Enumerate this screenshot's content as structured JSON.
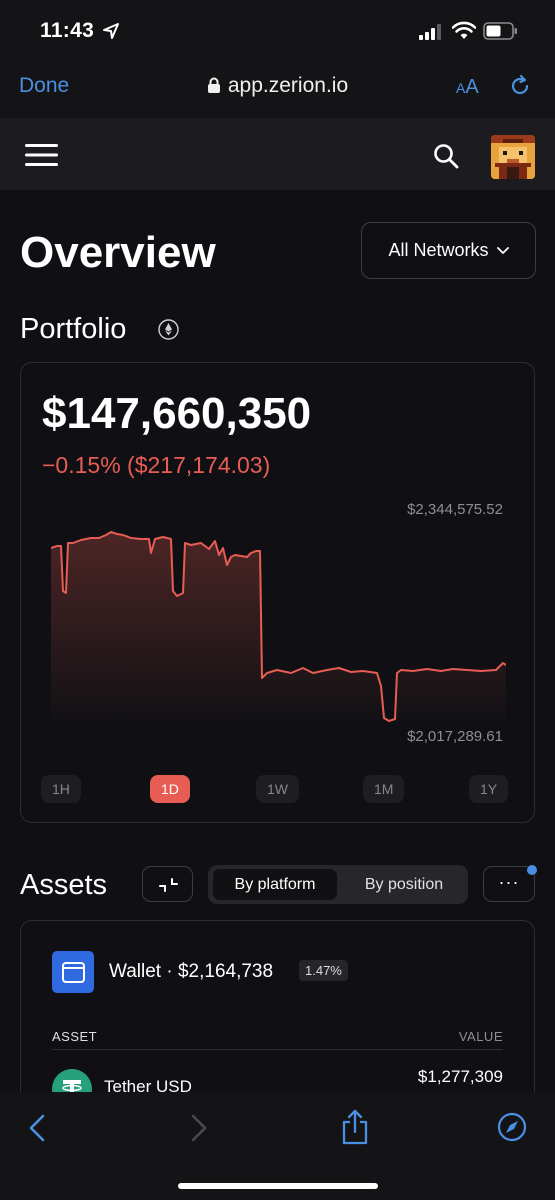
{
  "status_bar": {
    "time": "11:43"
  },
  "browser": {
    "done_label": "Done",
    "url": "app.zerion.io",
    "aa_label_small": "A",
    "aa_label_large": "A"
  },
  "page": {
    "title": "Overview",
    "network_selector": "All Networks"
  },
  "portfolio": {
    "label": "Portfolio",
    "value": "$147,660,350",
    "change": "−0.15% ($217,174.03)",
    "chart_max_label": "$2,344,575.52",
    "chart_min_label": "$2,017,289.61",
    "ranges": [
      "1H",
      "1D",
      "1W",
      "1M",
      "1Y"
    ],
    "active_range": "1D"
  },
  "assets": {
    "title": "Assets",
    "toggle": {
      "by_platform": "By platform",
      "by_position": "By position"
    },
    "more_label": "···",
    "wallet": {
      "label": "Wallet · $2,164,738",
      "percent": "1.47%"
    },
    "columns": {
      "asset": "ASSET",
      "value": "VALUE"
    },
    "rows": [
      {
        "name": "Tether USD",
        "value": "$1,277,309"
      }
    ]
  },
  "colors": {
    "accent": "#4a90e2",
    "negative": "#e85d53",
    "background": "#101014",
    "wallet_icon": "#2f6ae0",
    "tether": "#26a17b"
  }
}
